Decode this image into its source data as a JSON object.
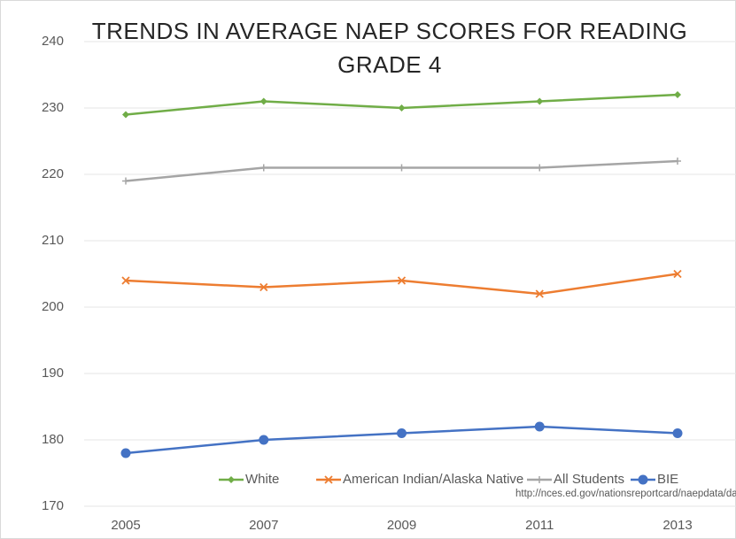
{
  "chart_data": {
    "type": "line",
    "title": "TRENDS IN AVERAGE NAEP SCORES FOR READING GRADE 4",
    "categories": [
      "2005",
      "2007",
      "2009",
      "2011",
      "2013"
    ],
    "series": [
      {
        "name": "White",
        "color": "#70ad47",
        "marker": "diamond",
        "values": [
          229,
          231,
          230,
          231,
          232
        ]
      },
      {
        "name": "American Indian/Alaska Native",
        "color": "#ed7d31",
        "marker": "x",
        "values": [
          204,
          203,
          204,
          202,
          205
        ]
      },
      {
        "name": "All Students",
        "color": "#a5a5a5",
        "marker": "plus",
        "values": [
          219,
          221,
          221,
          221,
          222
        ]
      },
      {
        "name": "BIE",
        "color": "#4472c4",
        "marker": "circle",
        "values": [
          178,
          180,
          181,
          182,
          181
        ]
      }
    ],
    "ylim": [
      170,
      240
    ],
    "yticks": [
      170,
      180,
      190,
      200,
      210,
      220,
      230,
      240
    ],
    "grid": true,
    "legend": "bottom-right",
    "source": "http://nces.ed.gov/nationsreportcard/naepdata/dataset.aspx"
  }
}
